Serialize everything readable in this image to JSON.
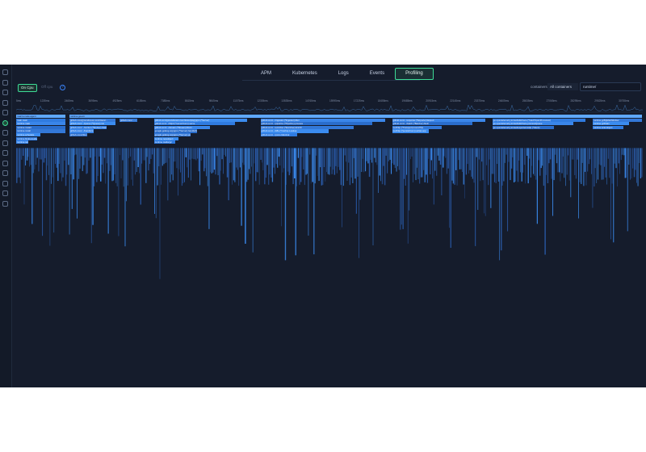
{
  "nav": {
    "tabs": [
      {
        "label": "APM",
        "active": false
      },
      {
        "label": "Kubernetes",
        "active": false
      },
      {
        "label": "Logs",
        "active": false
      },
      {
        "label": "Events",
        "active": false
      },
      {
        "label": "Profiling",
        "active": true
      }
    ]
  },
  "toolbar": {
    "on_cpu_label": "On Cpu",
    "off_cpu_label": "Off cpu",
    "help_label": "?",
    "containers_label": "containers",
    "containers_value": "All containers",
    "search_value": "runtime/"
  },
  "rail": {
    "icons": [
      "layers-icon",
      "search-icon",
      "document-icon",
      "monitor-icon",
      "chart-icon",
      "target-icon",
      "cube-icon",
      "cluster-icon",
      "server-icon",
      "bell-icon",
      "list-icon",
      "puzzle-icon",
      "settings-icon",
      "logout-icon"
    ],
    "active_index": 5
  },
  "timeline": {
    "labels": [
      "5ms",
      "1235ms",
      "2465ms",
      "3695ms",
      "4925ms",
      "6155ms",
      "7385ms",
      "8615ms",
      "9845ms",
      "11075ms",
      "12305ms",
      "13535ms",
      "14765ms",
      "15995ms",
      "17225ms",
      "18455ms",
      "19685ms",
      "20915ms",
      "22145ms",
      "23375ms",
      "24605ms",
      "25835ms",
      "27065ms",
      "28295ms",
      "29525ms",
      "30755ms"
    ]
  },
  "flamegraph": {
    "root_label": "runtime.goexit",
    "frames": [
      {
        "label": "maicro-node-agent",
        "depth": 0,
        "start": 0.0,
        "width": 0.08
      },
      {
        "label": "main.main",
        "depth": 1,
        "start": 0.0,
        "width": 0.08
      },
      {
        "label": "runtime.main",
        "depth": 2,
        "start": 0.0,
        "width": 0.08
      },
      {
        "label": "runtime.mstart",
        "depth": 3,
        "start": 0.0,
        "width": 0.08
      },
      {
        "label": "runtime.mcall",
        "depth": 4,
        "start": 0.0,
        "width": 0.08
      },
      {
        "label": "runtime.schedule",
        "depth": 5,
        "start": 0.0,
        "width": 0.04
      },
      {
        "label": "runtime.findrunnable",
        "depth": 6,
        "start": 0.0,
        "width": 0.035
      },
      {
        "label": "runtime.netpoll",
        "depth": 7,
        "start": 0.0,
        "width": 0.02
      },
      {
        "label": "runtime.goexit",
        "depth": 0,
        "start": 0.085,
        "width": 0.915
      },
      {
        "label": "github.com/groundcover-com/tracer...",
        "depth": 1,
        "start": 0.085,
        "width": 0.075
      },
      {
        "label": "github.com/.../queue.(*Queue).run",
        "depth": 2,
        "start": 0.085,
        "width": 0.075
      },
      {
        "label": "github.com/.../worker.(*Worker).Start",
        "depth": 3,
        "start": 0.085,
        "width": 0.06
      },
      {
        "label": "github.com/.../handlers.Handle",
        "depth": 4,
        "start": 0.085,
        "width": 0.04
      },
      {
        "label": "github.com/cilium/ebpf.(*Reader).Read",
        "depth": 5,
        "start": 0.085,
        "width": 0.03
      },
      {
        "label": "github.com/... ...",
        "depth": 1,
        "start": 0.165,
        "width": 0.03
      },
      {
        "label": "github.com/groundcover-com/tracer/pkg/grpc.(*Server)",
        "depth": 1,
        "start": 0.22,
        "width": 0.15
      },
      {
        "label": "github.com/.../http2.(*serverConn).serve",
        "depth": 2,
        "start": 0.22,
        "width": 0.13
      },
      {
        "label": "github.com/.../stream.(*Stream).Recv",
        "depth": 3,
        "start": 0.22,
        "width": 0.09
      },
      {
        "label": "google.golang.org/grpc.(*Server).handleStream",
        "depth": 4,
        "start": 0.22,
        "width": 0.07
      },
      {
        "label": "google.golang.org/grpc.(*Server).processUnaryRPC",
        "depth": 5,
        "start": 0.22,
        "width": 0.06
      },
      {
        "label": "runtime.newobject",
        "depth": 6,
        "start": 0.22,
        "width": 0.04
      },
      {
        "label": "runtime.mallocgc",
        "depth": 7,
        "start": 0.22,
        "width": 0.035
      },
      {
        "label": "github.com/.../ingestor.(*Ingestor).Run",
        "depth": 1,
        "start": 0.39,
        "width": 0.2
      },
      {
        "label": "github.com/.../pipeline.(*Pipeline).process",
        "depth": 2,
        "start": 0.39,
        "width": 0.18
      },
      {
        "label": "github.com/.../enricher.(*Enricher).Enrich",
        "depth": 3,
        "start": 0.39,
        "width": 0.15
      },
      {
        "label": "github.com/.../k8s.(*Cache).Lookup",
        "depth": 4,
        "start": 0.39,
        "width": 0.11
      },
      {
        "label": "github.com/.../proto.Marshal",
        "depth": 5,
        "start": 0.39,
        "width": 0.06
      },
      {
        "label": "github.com/.../exporter.(*Exporter).Export",
        "depth": 1,
        "start": 0.6,
        "width": 0.15
      },
      {
        "label": "github.com/.../batch.(*Batcher).flush",
        "depth": 2,
        "start": 0.6,
        "width": 0.13
      },
      {
        "label": "net/http.(*Transport).roundTrip",
        "depth": 3,
        "start": 0.6,
        "width": 0.08
      },
      {
        "label": "net/http.(*persistConn).writeLoop",
        "depth": 4,
        "start": 0.6,
        "width": 0.06
      },
      {
        "label": "go.opentelemetry.io/otel/sdk/trace.(*batchSpanProcessor)",
        "depth": 1,
        "start": 0.76,
        "width": 0.15
      },
      {
        "label": "go.opentelemetry.io/otel/sdk/trace.processQueue",
        "depth": 2,
        "start": 0.76,
        "width": 0.13
      },
      {
        "label": "go.opentelemetry.io/otel/exporters/otlp.(*client)",
        "depth": 3,
        "start": 0.76,
        "width": 0.1
      },
      {
        "label": "runtime.gcBgMarkWorker",
        "depth": 1,
        "start": 0.92,
        "width": 0.08
      },
      {
        "label": "runtime.gcDrain",
        "depth": 2,
        "start": 0.92,
        "width": 0.06
      },
      {
        "label": "runtime.scanobject",
        "depth": 3,
        "start": 0.92,
        "width": 0.05
      }
    ]
  },
  "colors": {
    "background": "#151c2c",
    "accent": "#3ddc97",
    "frame_blue": "#3b8cf0",
    "frame_dim": "#2a5aa8"
  }
}
